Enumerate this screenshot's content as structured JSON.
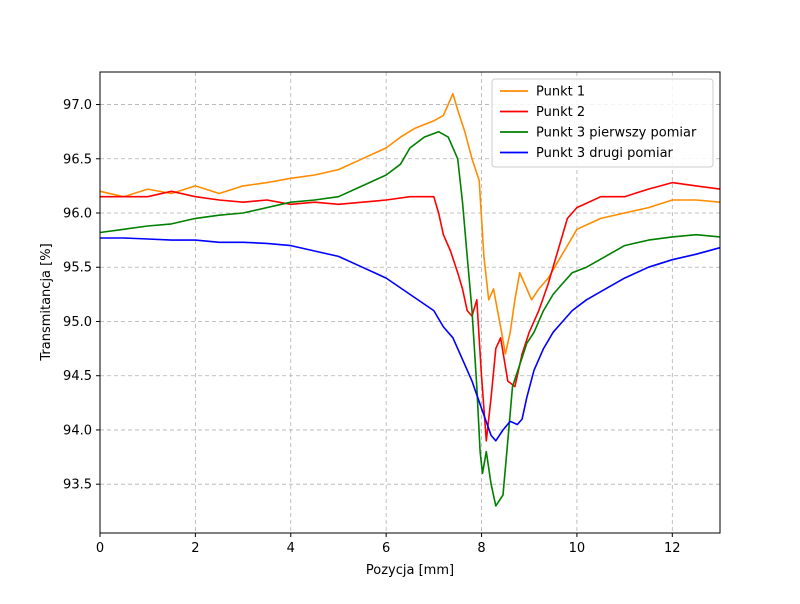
{
  "chart_data": {
    "type": "line",
    "title": "",
    "xlabel": "Pozycja [mm]",
    "ylabel": "Transmitancja [%]",
    "xlim": [
      0,
      13
    ],
    "ylim": [
      93.05,
      97.3
    ],
    "xticks": [
      0,
      2,
      4,
      6,
      8,
      10,
      12
    ],
    "xtick_labels": [
      "0",
      "2",
      "4",
      "6",
      "8",
      "10",
      "12"
    ],
    "yticks": [
      93.5,
      94.0,
      94.5,
      95.0,
      95.5,
      96.0,
      96.5,
      97.0
    ],
    "ytick_labels": [
      "93.5",
      "94.0",
      "94.5",
      "95.0",
      "95.5",
      "96.0",
      "96.5",
      "97.0"
    ],
    "grid": true,
    "legend_position": "top-right",
    "series": [
      {
        "name": "Punkt 1",
        "color": "#ff8c00",
        "points": [
          [
            0,
            96.2
          ],
          [
            0.5,
            96.15
          ],
          [
            1,
            96.22
          ],
          [
            1.5,
            96.18
          ],
          [
            2,
            96.25
          ],
          [
            2.5,
            96.18
          ],
          [
            3,
            96.25
          ],
          [
            3.5,
            96.28
          ],
          [
            4,
            96.32
          ],
          [
            4.5,
            96.35
          ],
          [
            5,
            96.4
          ],
          [
            5.5,
            96.5
          ],
          [
            6,
            96.6
          ],
          [
            6.3,
            96.7
          ],
          [
            6.6,
            96.78
          ],
          [
            7,
            96.85
          ],
          [
            7.2,
            96.9
          ],
          [
            7.4,
            97.1
          ],
          [
            7.5,
            96.95
          ],
          [
            7.65,
            96.75
          ],
          [
            7.8,
            96.5
          ],
          [
            7.95,
            96.3
          ],
          [
            8.05,
            95.6
          ],
          [
            8.15,
            95.2
          ],
          [
            8.25,
            95.3
          ],
          [
            8.4,
            94.95
          ],
          [
            8.5,
            94.7
          ],
          [
            8.6,
            94.9
          ],
          [
            8.7,
            95.2
          ],
          [
            8.8,
            95.45
          ],
          [
            8.9,
            95.35
          ],
          [
            9.05,
            95.2
          ],
          [
            9.2,
            95.3
          ],
          [
            9.4,
            95.4
          ],
          [
            9.6,
            95.55
          ],
          [
            9.8,
            95.7
          ],
          [
            10,
            95.85
          ],
          [
            10.5,
            95.95
          ],
          [
            11,
            96.0
          ],
          [
            11.5,
            96.05
          ],
          [
            12,
            96.12
          ],
          [
            12.5,
            96.12
          ],
          [
            13,
            96.1
          ]
        ]
      },
      {
        "name": "Punkt 2",
        "color": "#ff0000",
        "points": [
          [
            0,
            96.15
          ],
          [
            0.5,
            96.15
          ],
          [
            1,
            96.15
          ],
          [
            1.5,
            96.2
          ],
          [
            2,
            96.15
          ],
          [
            2.5,
            96.12
          ],
          [
            3,
            96.1
          ],
          [
            3.5,
            96.12
          ],
          [
            4,
            96.08
          ],
          [
            4.5,
            96.1
          ],
          [
            5,
            96.08
          ],
          [
            5.5,
            96.1
          ],
          [
            6,
            96.12
          ],
          [
            6.5,
            96.15
          ],
          [
            7,
            96.15
          ],
          [
            7.1,
            96.0
          ],
          [
            7.2,
            95.8
          ],
          [
            7.35,
            95.65
          ],
          [
            7.5,
            95.45
          ],
          [
            7.6,
            95.3
          ],
          [
            7.7,
            95.1
          ],
          [
            7.8,
            95.05
          ],
          [
            7.9,
            95.2
          ],
          [
            8.0,
            94.5
          ],
          [
            8.1,
            93.9
          ],
          [
            8.2,
            94.3
          ],
          [
            8.3,
            94.75
          ],
          [
            8.4,
            94.85
          ],
          [
            8.55,
            94.45
          ],
          [
            8.7,
            94.4
          ],
          [
            8.85,
            94.7
          ],
          [
            9.0,
            94.9
          ],
          [
            9.2,
            95.1
          ],
          [
            9.4,
            95.35
          ],
          [
            9.6,
            95.65
          ],
          [
            9.8,
            95.95
          ],
          [
            10,
            96.05
          ],
          [
            10.5,
            96.15
          ],
          [
            11,
            96.15
          ],
          [
            11.5,
            96.22
          ],
          [
            12,
            96.28
          ],
          [
            12.5,
            96.25
          ],
          [
            13,
            96.22
          ]
        ]
      },
      {
        "name": "Punkt 3 pierwszy pomiar",
        "color": "#008000",
        "points": [
          [
            0,
            95.82
          ],
          [
            0.5,
            95.85
          ],
          [
            1,
            95.88
          ],
          [
            1.5,
            95.9
          ],
          [
            2,
            95.95
          ],
          [
            2.5,
            95.98
          ],
          [
            3,
            96.0
          ],
          [
            3.5,
            96.05
          ],
          [
            4,
            96.1
          ],
          [
            4.5,
            96.12
          ],
          [
            5,
            96.15
          ],
          [
            5.5,
            96.25
          ],
          [
            6,
            96.35
          ],
          [
            6.3,
            96.45
          ],
          [
            6.5,
            96.6
          ],
          [
            6.8,
            96.7
          ],
          [
            7.1,
            96.75
          ],
          [
            7.3,
            96.7
          ],
          [
            7.5,
            96.5
          ],
          [
            7.6,
            96.1
          ],
          [
            7.7,
            95.6
          ],
          [
            7.8,
            95.1
          ],
          [
            7.9,
            94.4
          ],
          [
            7.97,
            93.8
          ],
          [
            8.02,
            93.6
          ],
          [
            8.1,
            93.8
          ],
          [
            8.2,
            93.5
          ],
          [
            8.3,
            93.3
          ],
          [
            8.45,
            93.4
          ],
          [
            8.55,
            93.9
          ],
          [
            8.65,
            94.4
          ],
          [
            8.8,
            94.6
          ],
          [
            8.95,
            94.8
          ],
          [
            9.1,
            94.9
          ],
          [
            9.3,
            95.1
          ],
          [
            9.5,
            95.25
          ],
          [
            9.7,
            95.35
          ],
          [
            9.9,
            95.45
          ],
          [
            10.2,
            95.5
          ],
          [
            10.6,
            95.6
          ],
          [
            11,
            95.7
          ],
          [
            11.5,
            95.75
          ],
          [
            12,
            95.78
          ],
          [
            12.5,
            95.8
          ],
          [
            13,
            95.78
          ]
        ]
      },
      {
        "name": "Punkt 3 drugi pomiar",
        "color": "#0000ff",
        "points": [
          [
            0,
            95.77
          ],
          [
            0.5,
            95.77
          ],
          [
            1,
            95.76
          ],
          [
            1.5,
            95.75
          ],
          [
            2,
            95.75
          ],
          [
            2.5,
            95.73
          ],
          [
            3,
            95.73
          ],
          [
            3.5,
            95.72
          ],
          [
            4,
            95.7
          ],
          [
            4.5,
            95.65
          ],
          [
            5,
            95.6
          ],
          [
            5.5,
            95.5
          ],
          [
            6,
            95.4
          ],
          [
            6.5,
            95.25
          ],
          [
            7,
            95.1
          ],
          [
            7.2,
            94.95
          ],
          [
            7.4,
            94.85
          ],
          [
            7.6,
            94.65
          ],
          [
            7.8,
            94.45
          ],
          [
            8.0,
            94.2
          ],
          [
            8.2,
            93.95
          ],
          [
            8.3,
            93.9
          ],
          [
            8.45,
            94.0
          ],
          [
            8.6,
            94.08
          ],
          [
            8.75,
            94.05
          ],
          [
            8.85,
            94.1
          ],
          [
            8.95,
            94.3
          ],
          [
            9.1,
            94.55
          ],
          [
            9.3,
            94.75
          ],
          [
            9.5,
            94.9
          ],
          [
            9.7,
            95.0
          ],
          [
            9.9,
            95.1
          ],
          [
            10.2,
            95.2
          ],
          [
            10.6,
            95.3
          ],
          [
            11,
            95.4
          ],
          [
            11.5,
            95.5
          ],
          [
            12,
            95.57
          ],
          [
            12.5,
            95.62
          ],
          [
            13,
            95.68
          ]
        ]
      }
    ]
  }
}
